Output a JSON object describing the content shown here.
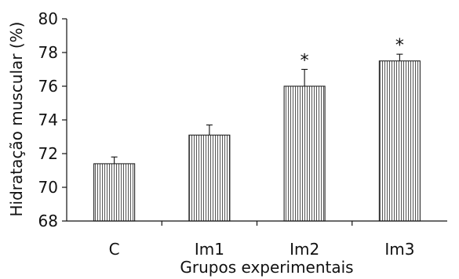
{
  "chart_data": {
    "type": "bar",
    "categories": [
      "C",
      "Im1",
      "Im2",
      "Im3"
    ],
    "values": [
      71.4,
      73.1,
      76.0,
      77.5
    ],
    "errors": [
      0.4,
      0.6,
      1.0,
      0.4
    ],
    "significance": [
      "",
      "",
      "*",
      "*"
    ],
    "xlabel": "Grupos experimentais",
    "ylabel": "Hidratação muscular (%)",
    "ylim": [
      68,
      80
    ],
    "yticks": [
      68,
      70,
      72,
      74,
      76,
      78,
      80
    ],
    "grid": false,
    "bar_fill": "vertical-hatch",
    "colors": {
      "bar_stroke": "#222222",
      "hatch": "#444444",
      "axis": "#111111"
    }
  }
}
